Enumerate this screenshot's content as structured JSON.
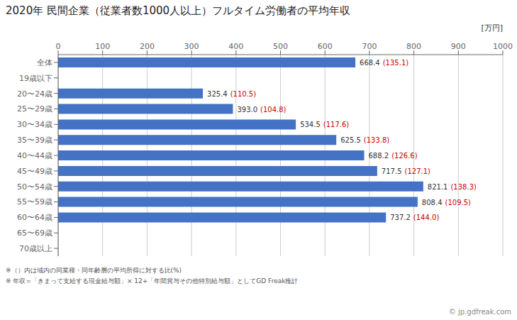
{
  "chart_data": {
    "type": "bar",
    "orientation": "horizontal",
    "title": "2020年 民間企業（従業者数1000人以上）フルタイム労働者の平均年収",
    "unit_label": "[万円]",
    "categories": [
      "全体",
      "19歳以下",
      "20〜24歳",
      "25〜29歳",
      "30〜34歳",
      "35〜39歳",
      "40〜44歳",
      "45〜49歳",
      "50〜54歳",
      "55〜59歳",
      "60〜64歳",
      "65〜69歳",
      "70歳以上"
    ],
    "values": [
      668.4,
      null,
      325.4,
      393.0,
      534.5,
      625.5,
      688.2,
      717.5,
      821.1,
      808.4,
      737.2,
      null,
      null
    ],
    "value_labels": [
      "668.4",
      null,
      "325.4",
      "393.0",
      "534.5",
      "625.5",
      "688.2",
      "717.5",
      "821.1",
      "808.4",
      "737.2",
      null,
      null
    ],
    "ratios": [
      135.1,
      null,
      110.5,
      104.8,
      117.6,
      133.8,
      126.6,
      127.1,
      138.3,
      109.5,
      144.0,
      null,
      null
    ],
    "ratio_labels": [
      "(135.1)",
      null,
      "(110.5)",
      "(104.8)",
      "(117.6)",
      "(133.8)",
      "(126.6)",
      "(127.1)",
      "(138.3)",
      "(109.5)",
      "(144.0)",
      null,
      null
    ],
    "color": "#4472C4",
    "value_color": "#333333",
    "ratio_color": "#CC0000",
    "xlim": [
      0,
      1000
    ],
    "xticks": [
      0,
      100,
      200,
      300,
      400,
      500,
      600,
      700,
      800,
      900,
      1000
    ],
    "grid": true,
    "data_labels": true,
    "footnotes": [
      "※（）内は域内の同業種・同年齢層の平均所得に対する比(%)",
      "※ 年収=「きまって支給する現金給与額」× 12+「年間賞与その他特別給与額」としてGD Freak推計"
    ],
    "watermark": "© jp.gdfreak.com"
  }
}
